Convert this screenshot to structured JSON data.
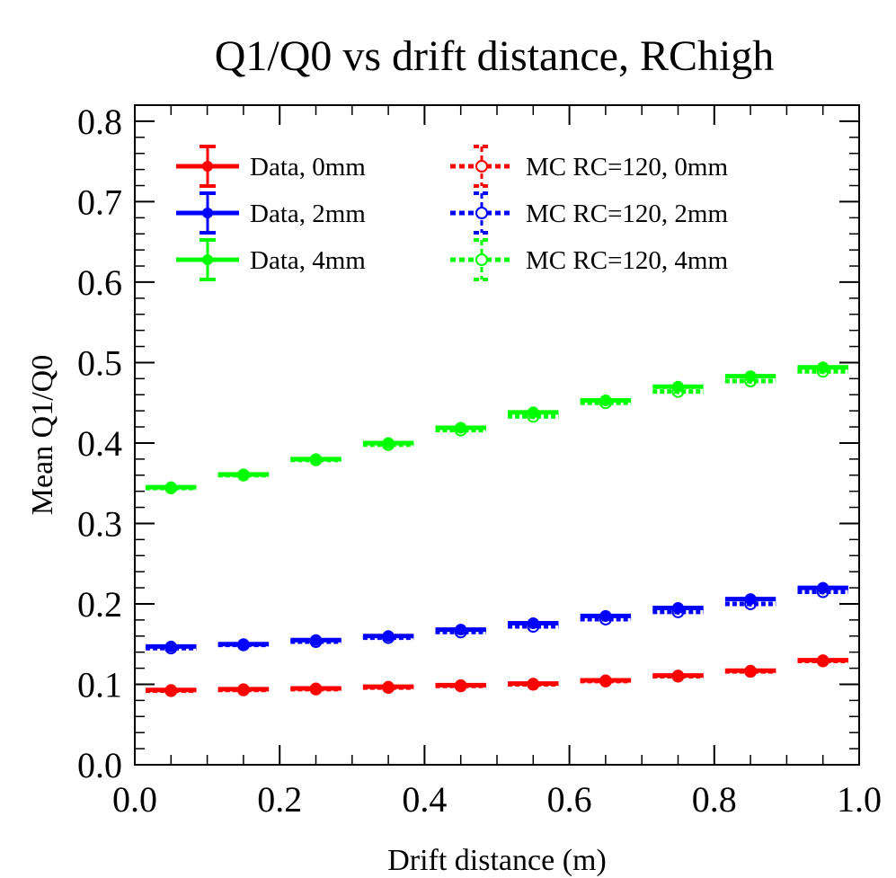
{
  "chart_data": {
    "type": "scatter",
    "title": "Q1/Q0 vs drift distance, RChigh",
    "xlabel": "Drift distance (m)",
    "ylabel": "Mean Q1/Q0",
    "xlim": [
      0.0,
      1.0
    ],
    "ylim": [
      0.0,
      0.82
    ],
    "x_ticks": [
      "0.0",
      "0.2",
      "0.4",
      "0.6",
      "0.8",
      "1.0"
    ],
    "y_ticks": [
      "0.0",
      "0.1",
      "0.2",
      "0.3",
      "0.4",
      "0.5",
      "0.6",
      "0.7",
      "0.8"
    ],
    "x": [
      0.05,
      0.15,
      0.25,
      0.35,
      0.45,
      0.55,
      0.65,
      0.75,
      0.85,
      0.95
    ],
    "x_halfwidth": 0.035,
    "legend_position": "top-left",
    "series": [
      {
        "name": "Data, 0mm",
        "color": "#ff0000",
        "style": "solid",
        "marker": "filled-circle",
        "values": [
          0.093,
          0.094,
          0.095,
          0.097,
          0.099,
          0.101,
          0.105,
          0.111,
          0.117,
          0.13
        ]
      },
      {
        "name": "Data, 2mm",
        "color": "#0000ff",
        "style": "solid",
        "marker": "filled-circle",
        "values": [
          0.147,
          0.15,
          0.155,
          0.16,
          0.168,
          0.176,
          0.185,
          0.195,
          0.206,
          0.22
        ]
      },
      {
        "name": "Data, 4mm",
        "color": "#00ff00",
        "style": "solid",
        "marker": "filled-circle",
        "values": [
          0.345,
          0.361,
          0.38,
          0.4,
          0.419,
          0.438,
          0.453,
          0.47,
          0.483,
          0.494
        ]
      },
      {
        "name": "MC RC=120, 0mm",
        "color": "#ff0000",
        "style": "dotted",
        "marker": "open-circle",
        "values": [
          0.092,
          0.093,
          0.094,
          0.096,
          0.098,
          0.1,
          0.104,
          0.11,
          0.116,
          0.129
        ]
      },
      {
        "name": "MC RC=120, 2mm",
        "color": "#0000ff",
        "style": "dotted",
        "marker": "open-circle",
        "values": [
          0.145,
          0.149,
          0.153,
          0.158,
          0.165,
          0.172,
          0.181,
          0.19,
          0.2,
          0.215
        ]
      },
      {
        "name": "MC RC=120, 4mm",
        "color": "#00ff00",
        "style": "dotted",
        "marker": "open-circle",
        "values": [
          0.344,
          0.36,
          0.379,
          0.398,
          0.416,
          0.433,
          0.45,
          0.464,
          0.477,
          0.489
        ]
      }
    ]
  }
}
